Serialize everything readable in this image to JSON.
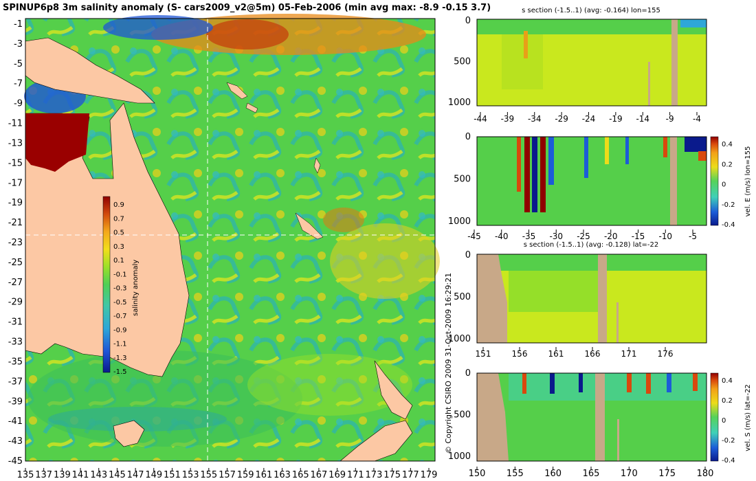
{
  "palette": {
    "salinity": [
      "#0a1a8c",
      "#1f55d6",
      "#2ea7d8",
      "#41c7a6",
      "#4fcf55",
      "#7fdc2e",
      "#c9e81e",
      "#f2de1a",
      "#f4b21a",
      "#e57a12",
      "#c0300a",
      "#900000"
    ],
    "velocity": [
      "#0a1a8c",
      "#1c5cd8",
      "#2ca6e0",
      "#3fd0b8",
      "#55d25a",
      "#a8e12a",
      "#ecdc1a",
      "#f2a018",
      "#d9480d",
      "#900000"
    ],
    "land": "#fcc8a4",
    "section_land": "#c8a888"
  },
  "chart_data": [
    {
      "id": "map",
      "type": "heatmap",
      "title": "SPINUP6p8 3m salinity anomaly (S- cars2009_v2@5m) 05-Feb-2006 (min avg max: -8.9 -0.15 3.7)",
      "x_ticks": [
        "135",
        "137",
        "139",
        "141",
        "143",
        "145",
        "147",
        "149",
        "151",
        "153",
        "155",
        "157",
        "159",
        "161",
        "163",
        "165",
        "167",
        "169",
        "171",
        "173",
        "175",
        "177",
        "179"
      ],
      "y_ticks": [
        "-1",
        "-3",
        "-5",
        "-7",
        "-9",
        "-11",
        "-13",
        "-15",
        "-17",
        "-19",
        "-21",
        "-23",
        "-25",
        "-27",
        "-29",
        "-31",
        "-33",
        "-35",
        "-37",
        "-39",
        "-41",
        "-43",
        "-45"
      ],
      "xlim": [
        135,
        180
      ],
      "ylim": [
        -45,
        0
      ],
      "colorbar": {
        "label": "salinity anomaly",
        "ticks": [
          "0.9",
          "0.7",
          "0.5",
          "0.3",
          "0.1",
          "-0.1",
          "-0.3",
          "-0.5",
          "-0.7",
          "-0.9",
          "-1.1",
          "-1.3",
          "-1.5"
        ]
      }
    },
    {
      "id": "section1",
      "type": "heatmap",
      "title": "s section (-1.5..1) (avg: -0.164) lon=155",
      "x_ticks": [
        "-44",
        "-39",
        "-34",
        "-29",
        "-24",
        "-19",
        "-14",
        "-9",
        "-4"
      ],
      "y_ticks": [
        "0",
        "500",
        "1000"
      ]
    },
    {
      "id": "section2",
      "type": "heatmap",
      "title": "",
      "x_ticks": [
        "-45",
        "-40",
        "-35",
        "-30",
        "-25",
        "-20",
        "-15",
        "-10",
        "-5"
      ],
      "y_ticks": [
        "0",
        "500",
        "1000"
      ],
      "colorbar": {
        "label": "vel. E (m/s) lon=155",
        "ticks": [
          "0.4",
          "0.2",
          "0",
          "-0.2",
          "-0.4"
        ]
      }
    },
    {
      "id": "section3",
      "type": "heatmap",
      "title": "s section (-1.5..1) (avg: -0.128) lat=-22",
      "x_ticks": [
        "151",
        "156",
        "161",
        "166",
        "171",
        "176"
      ],
      "y_ticks": [
        "0",
        "500",
        "1000"
      ]
    },
    {
      "id": "section4",
      "type": "heatmap",
      "title": "",
      "x_ticks": [
        "150",
        "155",
        "160",
        "165",
        "170",
        "175",
        "180"
      ],
      "y_ticks": [
        "0",
        "500",
        "1000"
      ],
      "colorbar": {
        "label": "vel. S (m/s) lat=-22",
        "ticks": [
          "0.4",
          "0.2",
          "0",
          "-0.2",
          "-0.4"
        ]
      }
    }
  ],
  "copyright": "© Copyright CSIRO 2009   31-Oct-2009 16:29:21"
}
